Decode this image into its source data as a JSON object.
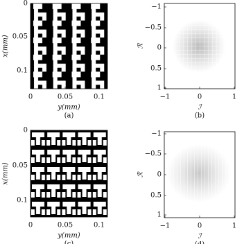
{
  "panels": [
    {
      "caption": "(a)",
      "xlabel": "y(mm)",
      "ylabel": "x(mm)",
      "xticks": [
        "0",
        "0.05",
        "0.1"
      ],
      "yticks": [
        "0",
        "0.05",
        "0.1"
      ]
    },
    {
      "caption": "(b)",
      "xlabel": "ℐ",
      "ylabel": "ℛ",
      "xticks": [
        "−1",
        "0",
        "1"
      ],
      "yticks": [
        "−1",
        "−0.5",
        "0",
        "0.5",
        "1"
      ]
    },
    {
      "caption": "(c)",
      "xlabel": "y(mm)",
      "ylabel": "x(mm)",
      "xticks": [
        "0",
        "0.05",
        "0.1"
      ],
      "yticks": [
        "0",
        "0.05",
        "0.1"
      ]
    },
    {
      "caption": "(d)",
      "xlabel": "ℐ",
      "ylabel": "ℛ",
      "xticks": [
        "−1",
        "0",
        "1"
      ],
      "yticks": [
        "−1",
        "−0.5",
        "0",
        "0.5",
        "1"
      ]
    }
  ]
}
